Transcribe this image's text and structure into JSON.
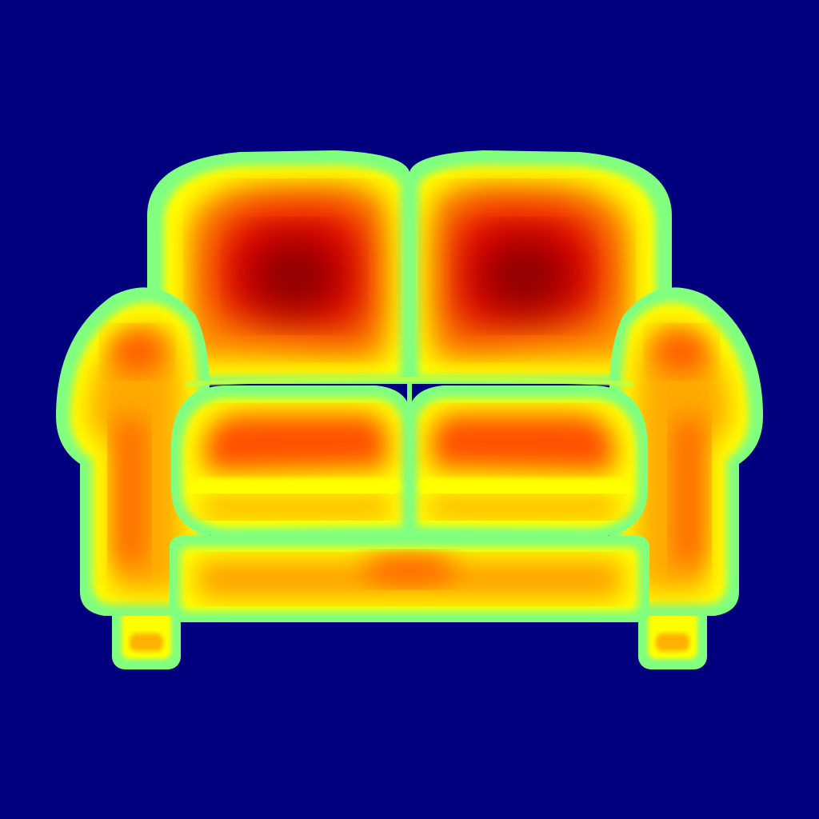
{
  "image": {
    "subject": "sofa-icon",
    "colors": {
      "background": "#00007f",
      "outline": "#80ff80",
      "rim": "#ffff00",
      "mid": "#ff9000",
      "hot": "#e00000",
      "core": "#7f0000"
    }
  }
}
